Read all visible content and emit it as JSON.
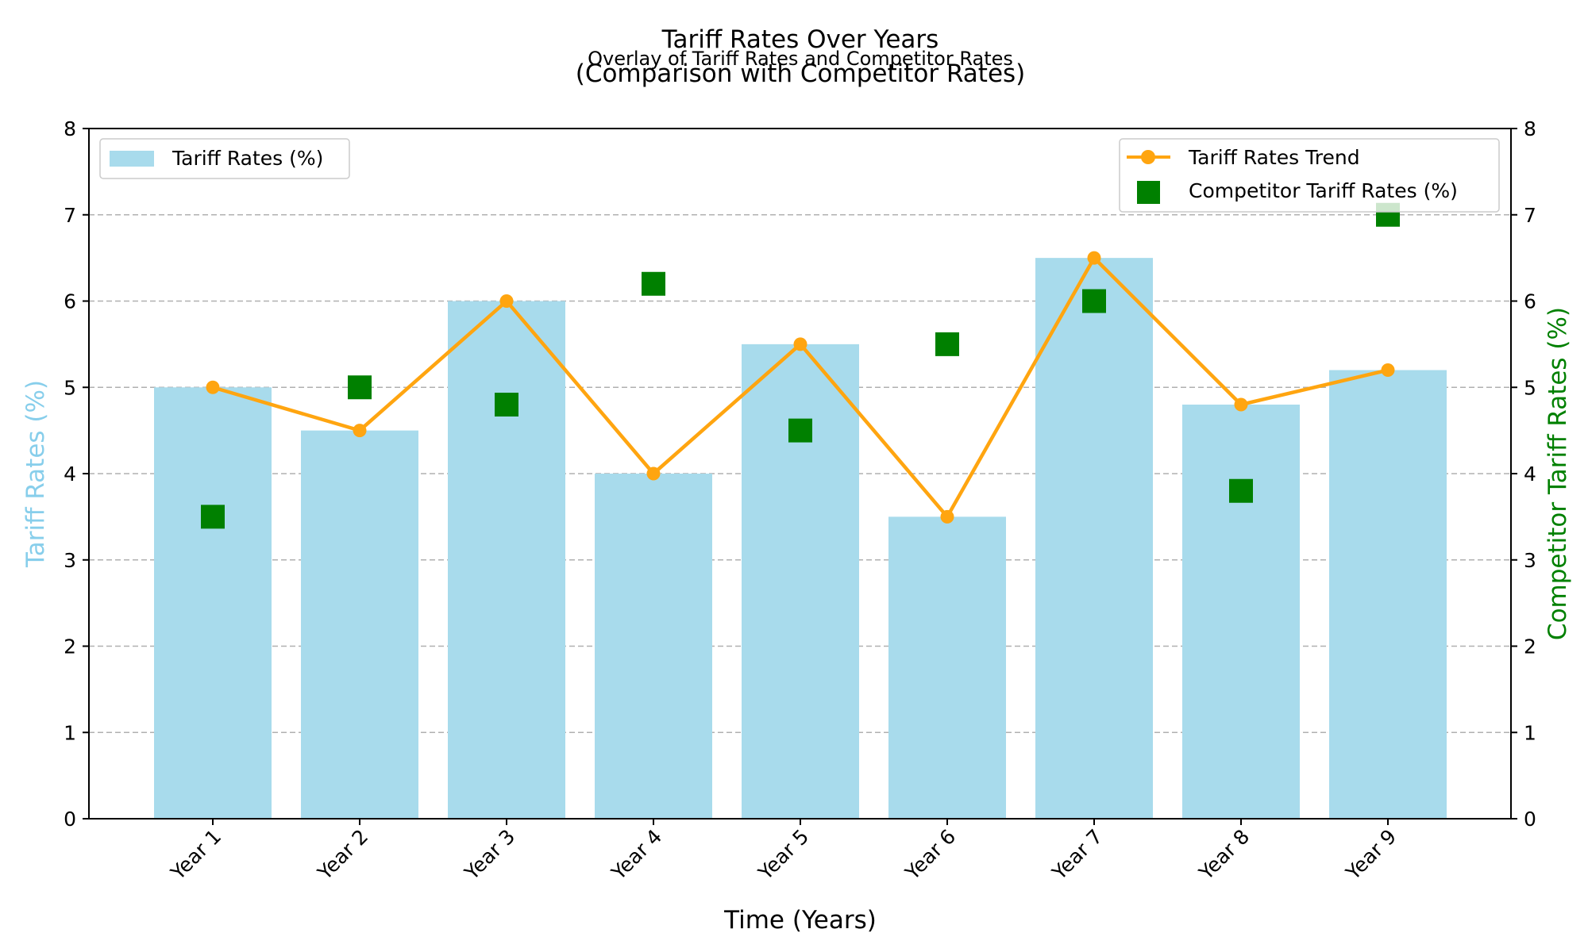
{
  "figure": {
    "title": "Tariff Rates Over Years\n(Comparison with Competitor Rates)",
    "subtitle": "Overlay of Tariff Rates and Competitor Rates"
  },
  "colors": {
    "bars": "#a8dbec",
    "trend": "#ffa510",
    "competitor": "#008000",
    "left_axis_label": "#87ceeb",
    "right_axis_label": "#008000",
    "grid": "#b0b0b0"
  },
  "chart_data": {
    "type": "bar",
    "categories": [
      "Year 1",
      "Year 2",
      "Year 3",
      "Year 4",
      "Year 5",
      "Year 6",
      "Year 7",
      "Year 8",
      "Year 9"
    ],
    "series": [
      {
        "name": "Tariff Rates (%)",
        "kind": "bar",
        "axis": "left",
        "values": [
          5.0,
          4.5,
          6.0,
          4.0,
          5.5,
          3.5,
          6.5,
          4.8,
          5.2
        ]
      },
      {
        "name": "Tariff Rates Trend",
        "kind": "line",
        "axis": "right",
        "values": [
          5.0,
          4.5,
          6.0,
          4.0,
          5.5,
          3.5,
          6.5,
          4.8,
          5.2
        ]
      },
      {
        "name": "Competitor Tariff Rates (%)",
        "kind": "scatter",
        "marker": "square",
        "axis": "right",
        "values": [
          3.5,
          5.0,
          4.8,
          6.2,
          4.5,
          5.5,
          6.0,
          3.8,
          7.0
        ]
      }
    ],
    "xlabel": "Time (Years)",
    "ylabel": "Tariff Rates (%)",
    "ylabel_right": "Competitor Tariff Rates (%)",
    "ylim": [
      0,
      8
    ],
    "ylim_right": [
      0,
      8
    ],
    "yticks": [
      "0",
      "1",
      "2",
      "3",
      "4",
      "5",
      "6",
      "7",
      "8"
    ],
    "grid": "horizontal dashed",
    "legend_left": {
      "placement": "top-left",
      "entries": [
        "Tariff Rates (%)"
      ]
    },
    "legend_right": {
      "placement": "top-right",
      "entries": [
        "Tariff Rates Trend",
        "Competitor Tariff Rates (%)"
      ]
    }
  }
}
